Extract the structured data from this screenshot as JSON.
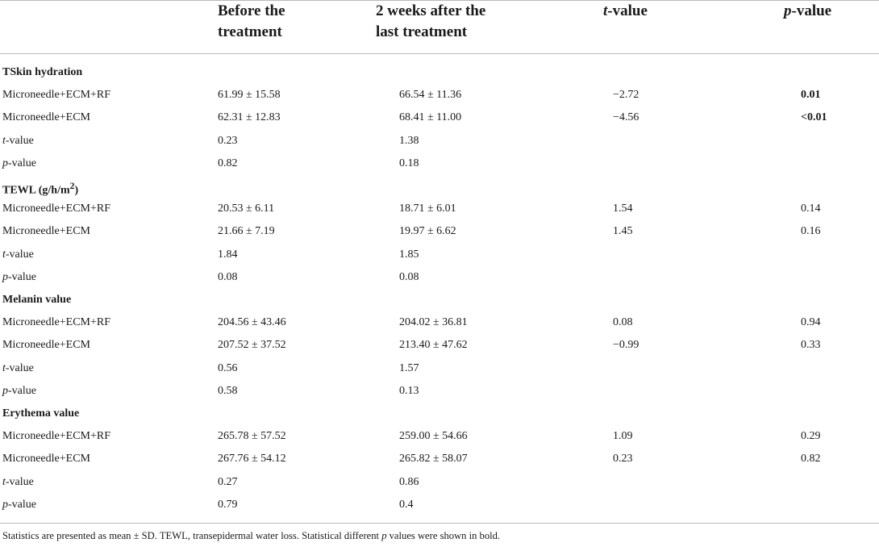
{
  "header": {
    "col1_line1": "Before the",
    "col1_line2": "treatment",
    "col2_line1": "2 weeks after the",
    "col2_line2": "last treatment",
    "col3_it": "t",
    "col3_rest": "-value",
    "col4_it": "p",
    "col4_rest": "-value"
  },
  "sections": [
    {
      "title": "TSkin hydration",
      "unit_sup": "",
      "title_tail": "",
      "rows": [
        {
          "it": "",
          "label": "Microneedle+ECM+RF",
          "before": "61.99 ± 15.58",
          "after": "66.54 ± 11.36",
          "t": "−2.72",
          "p": "0.01",
          "p_bold": true
        },
        {
          "it": "",
          "label": "Microneedle+ECM",
          "before": "62.31 ± 12.83",
          "after": "68.41 ± 11.00",
          "t": "−4.56",
          "p": "<0.01",
          "p_bold": true
        },
        {
          "it": "t",
          "label": "-value",
          "before": "0.23",
          "after": "1.38",
          "t": "",
          "p": "",
          "p_bold": false
        },
        {
          "it": "p",
          "label": "-value",
          "before": "0.82",
          "after": "0.18",
          "t": "",
          "p": "",
          "p_bold": false
        }
      ]
    },
    {
      "title": "TEWL (g/h/m",
      "unit_sup": "2",
      "title_tail": ")",
      "rows": [
        {
          "it": "",
          "label": "Microneedle+ECM+RF",
          "before": "20.53 ± 6.11",
          "after": "18.71 ± 6.01",
          "t": "1.54",
          "p": "0.14",
          "p_bold": false
        },
        {
          "it": "",
          "label": "Microneedle+ECM",
          "before": "21.66 ± 7.19",
          "after": "19.97 ± 6.62",
          "t": "1.45",
          "p": "0.16",
          "p_bold": false
        },
        {
          "it": "t",
          "label": "-value",
          "before": "1.84",
          "after": "1.85",
          "t": "",
          "p": "",
          "p_bold": false
        },
        {
          "it": "p",
          "label": "-value",
          "before": "0.08",
          "after": "0.08",
          "t": "",
          "p": "",
          "p_bold": false
        }
      ]
    },
    {
      "title": "Melanin value",
      "unit_sup": "",
      "title_tail": "",
      "rows": [
        {
          "it": "",
          "label": "Microneedle+ECM+RF",
          "before": "204.56 ± 43.46",
          "after": "204.02 ± 36.81",
          "t": "0.08",
          "p": "0.94",
          "p_bold": false
        },
        {
          "it": "",
          "label": "Microneedle+ECM",
          "before": "207.52 ± 37.52",
          "after": "213.40 ± 47.62",
          "t": "−0.99",
          "p": "0.33",
          "p_bold": false
        },
        {
          "it": "t",
          "label": "-value",
          "before": "0.56",
          "after": "1.57",
          "t": "",
          "p": "",
          "p_bold": false
        },
        {
          "it": "p",
          "label": "-value",
          "before": "0.58",
          "after": "0.13",
          "t": "",
          "p": "",
          "p_bold": false
        }
      ]
    },
    {
      "title": "Erythema value",
      "unit_sup": "",
      "title_tail": "",
      "rows": [
        {
          "it": "",
          "label": "Microneedle+ECM+RF",
          "before": "265.78 ± 57.52",
          "after": "259.00 ± 54.66",
          "t": "1.09",
          "p": "0.29",
          "p_bold": false
        },
        {
          "it": "",
          "label": "Microneedle+ECM",
          "before": "267.76 ± 54.12",
          "after": "265.82 ± 58.07",
          "t": "0.23",
          "p": "0.82",
          "p_bold": false
        },
        {
          "it": "t",
          "label": "-value",
          "before": "0.27",
          "after": "0.86",
          "t": "",
          "p": "",
          "p_bold": false
        },
        {
          "it": "p",
          "label": "-value",
          "before": "0.79",
          "after": "0.4",
          "t": "",
          "p": "",
          "p_bold": false
        }
      ]
    }
  ],
  "footnote": {
    "part1": "Statistics are presented as mean ± SD. TEWL, transepidermal water loss. Statistical different ",
    "italic_p": "p",
    "part2": " values were shown in bold."
  }
}
